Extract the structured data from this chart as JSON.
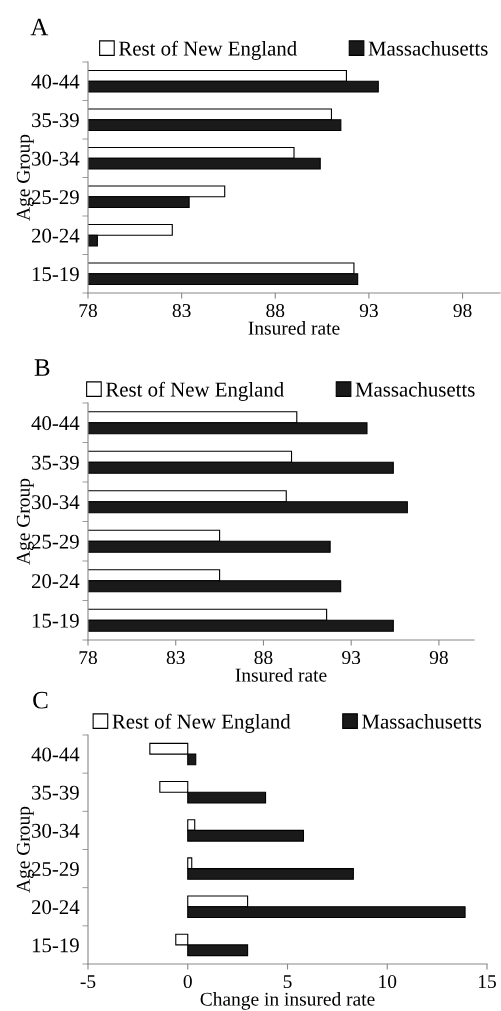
{
  "chart_data": [
    {
      "type": "bar",
      "orientation": "horizontal",
      "title": "A",
      "xlabel": "Insured rate",
      "ylabel": "Age Group",
      "categories": [
        "40-44",
        "35-39",
        "30-34",
        "25-29",
        "20-24",
        "15-19"
      ],
      "xlim": [
        78,
        100
      ],
      "xticks": [
        78,
        83,
        88,
        93,
        98
      ],
      "grid": false,
      "legend": "top",
      "series": [
        {
          "name": "Rest of New England",
          "color": "#ffffff",
          "values": [
            91.8,
            91.0,
            89.0,
            85.3,
            82.5,
            92.2
          ]
        },
        {
          "name": "Massachusetts",
          "color": "#1a1a1a",
          "values": [
            93.5,
            91.5,
            90.4,
            83.4,
            78.5,
            92.4
          ]
        }
      ]
    },
    {
      "type": "bar",
      "orientation": "horizontal",
      "title": "B",
      "xlabel": "Insured rate",
      "ylabel": "Age Group",
      "categories": [
        "40-44",
        "35-39",
        "30-34",
        "25-29",
        "20-24",
        "15-19"
      ],
      "xlim": [
        78,
        100
      ],
      "xticks": [
        78,
        83,
        88,
        93,
        98
      ],
      "grid": false,
      "legend": "top",
      "series": [
        {
          "name": "Rest of New England",
          "color": "#ffffff",
          "values": [
            89.9,
            89.6,
            89.3,
            85.5,
            85.5,
            91.6
          ]
        },
        {
          "name": "Massachusetts",
          "color": "#1a1a1a",
          "values": [
            93.9,
            95.4,
            96.2,
            91.8,
            92.4,
            95.4
          ]
        }
      ]
    },
    {
      "type": "bar",
      "orientation": "horizontal",
      "title": "C",
      "xlabel": "Change in insured rate",
      "ylabel": "Age Group",
      "categories": [
        "40-44",
        "35-39",
        "30-34",
        "25-29",
        "20-24",
        "15-19"
      ],
      "xlim": [
        -5,
        15
      ],
      "xticks": [
        -5,
        0,
        5,
        10,
        15
      ],
      "grid": false,
      "legend": "top",
      "series": [
        {
          "name": "Rest of New England",
          "color": "#ffffff",
          "values": [
            -1.9,
            -1.4,
            0.35,
            0.2,
            3.0,
            -0.6
          ]
        },
        {
          "name": "Massachusetts",
          "color": "#1a1a1a",
          "values": [
            0.4,
            3.9,
            5.8,
            8.3,
            13.9,
            3.0
          ]
        }
      ]
    }
  ]
}
